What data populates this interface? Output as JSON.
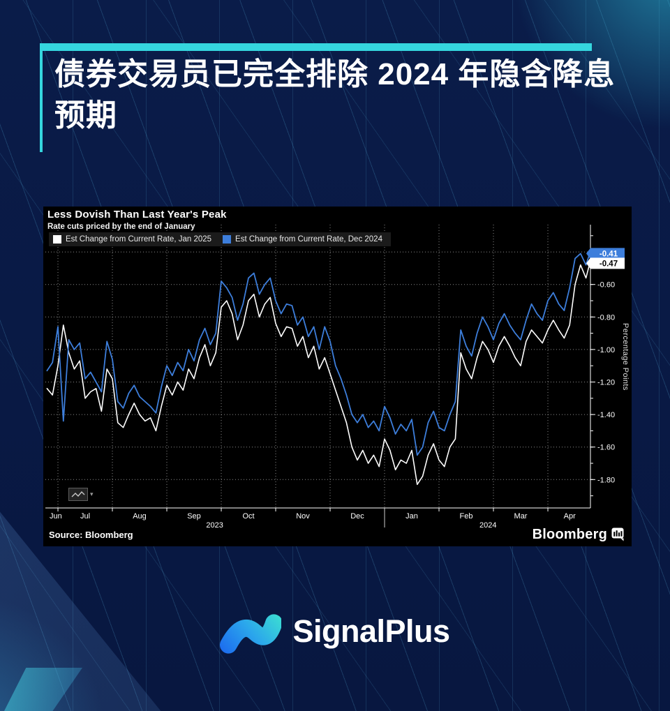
{
  "header": {
    "title": "债券交易员已完全排除 2024 年隐含降息预期"
  },
  "palette": {
    "background_navy": "#0a1c49",
    "accent_teal": "#35d6de",
    "panel_black": "#000000",
    "legend_bg": "#1b1b1b",
    "line_white": "#ffffff",
    "line_blue": "#3d7edb"
  },
  "panel": {
    "source_label": "Source:  Bloomberg",
    "bloomberg_wordmark": "Bloomberg",
    "chart_type_caret": "▾"
  },
  "footer": {
    "brand": "SignalPlus"
  },
  "chart_data": {
    "type": "line",
    "title": "Less Dovish Than Last Year's Peak",
    "subtitle": "Rate cuts priced by the end of January",
    "ylabel": "Percentage Points",
    "ylim": [
      -1.975,
      -0.232
    ],
    "grid": true,
    "legend_position": "top-left",
    "x_unit": "months since 2023-07-01 (ticks at month starts Jul 2023 .. Apr 2024)",
    "month_labels": [
      {
        "label": "Jun",
        "pos": -0.04
      },
      {
        "label": "Jul",
        "pos": 0.5
      },
      {
        "label": "Aug",
        "pos": 1.5
      },
      {
        "label": "Sep",
        "pos": 2.5
      },
      {
        "label": "Oct",
        "pos": 3.5
      },
      {
        "label": "Nov",
        "pos": 4.5
      },
      {
        "label": "Dec",
        "pos": 5.5
      },
      {
        "label": "Jan",
        "pos": 6.5
      },
      {
        "label": "Feb",
        "pos": 7.5
      },
      {
        "label": "Mar",
        "pos": 8.5
      },
      {
        "label": "Apr",
        "pos": 9.4
      }
    ],
    "year_labels": [
      {
        "label": "2023",
        "pos": 2.88
      },
      {
        "label": "2024",
        "pos": 7.9
      }
    ],
    "year_divider_pos": 6.0,
    "yticks": [
      -0.6,
      -0.8,
      -1.0,
      -1.2,
      -1.4,
      -1.6,
      -1.8
    ],
    "minor_tick_step": 0.1,
    "end_tags": [
      {
        "label": "-0.41",
        "value": -0.41,
        "bg": "#3d7edb",
        "fg": "#ffffff"
      },
      {
        "label": "-0.47",
        "value": -0.47,
        "bg": "#ffffff",
        "fg": "#000000"
      }
    ],
    "x": [
      -0.2,
      -0.1,
      0,
      0.1,
      0.2,
      0.3,
      0.4,
      0.5,
      0.6,
      0.7,
      0.8,
      0.9,
      1,
      1.1,
      1.2,
      1.3,
      1.4,
      1.5,
      1.6,
      1.7,
      1.8,
      1.9,
      2,
      2.1,
      2.2,
      2.3,
      2.4,
      2.5,
      2.6,
      2.7,
      2.8,
      2.9,
      3,
      3.1,
      3.2,
      3.3,
      3.4,
      3.5,
      3.6,
      3.7,
      3.8,
      3.9,
      4,
      4.1,
      4.2,
      4.3,
      4.4,
      4.5,
      4.6,
      4.7,
      4.8,
      4.9,
      5,
      5.1,
      5.2,
      5.3,
      5.4,
      5.5,
      5.6,
      5.7,
      5.8,
      5.9,
      6,
      6.1,
      6.2,
      6.3,
      6.4,
      6.5,
      6.6,
      6.7,
      6.8,
      6.9,
      7,
      7.1,
      7.2,
      7.3,
      7.4,
      7.5,
      7.6,
      7.7,
      7.8,
      7.9,
      8,
      8.1,
      8.2,
      8.3,
      8.4,
      8.5,
      8.6,
      8.7,
      8.8,
      8.9,
      9,
      9.1,
      9.2,
      9.3,
      9.4,
      9.5,
      9.6,
      9.7,
      9.8
    ],
    "series": [
      {
        "name": "Est Change from Current Rate, Jan 2025",
        "color": "#ffffff",
        "width": 1.6,
        "values": [
          -1.24,
          -1.28,
          -1.1,
          -0.85,
          -1.02,
          -1.12,
          -1.07,
          -1.3,
          -1.26,
          -1.24,
          -1.38,
          -1.12,
          -1.18,
          -1.45,
          -1.48,
          -1.4,
          -1.33,
          -1.4,
          -1.44,
          -1.42,
          -1.5,
          -1.35,
          -1.22,
          -1.28,
          -1.2,
          -1.25,
          -1.12,
          -1.18,
          -1.05,
          -0.97,
          -1.1,
          -1.02,
          -0.74,
          -0.7,
          -0.78,
          -0.94,
          -0.85,
          -0.7,
          -0.66,
          -0.8,
          -0.72,
          -0.68,
          -0.84,
          -0.92,
          -0.86,
          -0.87,
          -0.98,
          -0.92,
          -1.05,
          -0.98,
          -1.12,
          -1.05,
          -1.15,
          -1.25,
          -1.35,
          -1.45,
          -1.6,
          -1.68,
          -1.62,
          -1.7,
          -1.65,
          -1.72,
          -1.55,
          -1.62,
          -1.74,
          -1.68,
          -1.7,
          -1.62,
          -1.83,
          -1.78,
          -1.65,
          -1.58,
          -1.68,
          -1.72,
          -1.6,
          -1.55,
          -1.02,
          -1.12,
          -1.18,
          -1.05,
          -0.95,
          -1.0,
          -1.08,
          -0.98,
          -0.92,
          -0.98,
          -1.05,
          -1.1,
          -0.95,
          -0.88,
          -0.92,
          -0.96,
          -0.88,
          -0.82,
          -0.88,
          -0.93,
          -0.85,
          -0.6,
          -0.48,
          -0.56,
          -0.47
        ]
      },
      {
        "name": "Est Change from Current Rate, Dec 2024",
        "color": "#3d7edb",
        "width": 1.8,
        "values": [
          -1.13,
          -1.08,
          -0.86,
          -1.44,
          -0.94,
          -1.0,
          -0.96,
          -1.18,
          -1.14,
          -1.2,
          -1.26,
          -0.95,
          -1.06,
          -1.32,
          -1.36,
          -1.27,
          -1.22,
          -1.29,
          -1.32,
          -1.35,
          -1.39,
          -1.23,
          -1.1,
          -1.16,
          -1.08,
          -1.13,
          -1.0,
          -1.07,
          -0.94,
          -0.87,
          -0.97,
          -0.9,
          -0.58,
          -0.62,
          -0.68,
          -0.82,
          -0.72,
          -0.56,
          -0.53,
          -0.66,
          -0.6,
          -0.56,
          -0.7,
          -0.78,
          -0.72,
          -0.73,
          -0.85,
          -0.8,
          -0.92,
          -0.86,
          -1.0,
          -0.86,
          -0.95,
          -1.1,
          -1.18,
          -1.28,
          -1.4,
          -1.45,
          -1.4,
          -1.48,
          -1.44,
          -1.5,
          -1.35,
          -1.42,
          -1.52,
          -1.46,
          -1.5,
          -1.43,
          -1.65,
          -1.6,
          -1.45,
          -1.38,
          -1.48,
          -1.5,
          -1.4,
          -1.32,
          -0.88,
          -0.98,
          -1.04,
          -0.9,
          -0.8,
          -0.86,
          -0.94,
          -0.84,
          -0.78,
          -0.85,
          -0.9,
          -0.94,
          -0.82,
          -0.72,
          -0.78,
          -0.82,
          -0.7,
          -0.65,
          -0.72,
          -0.76,
          -0.62,
          -0.44,
          -0.41,
          -0.48,
          -0.41
        ]
      }
    ]
  }
}
